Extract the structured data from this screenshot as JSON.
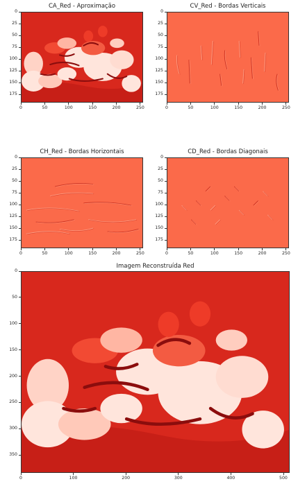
{
  "palette": {
    "approx_base": "#d8281d",
    "detail_base": "#fb6a4a",
    "highlight": "#ffe5dc",
    "shadow": "#8b0d0d",
    "edge_light": "#fc9c83",
    "edge_dark": "#cc3120"
  },
  "chart_data": [
    {
      "id": "ca",
      "type": "heatmap",
      "title": "CA_Red - Aproximação",
      "image_role": "approximation",
      "x_ticks": [
        0,
        50,
        100,
        150,
        200,
        250
      ],
      "y_ticks": [
        0,
        25,
        50,
        75,
        100,
        125,
        150,
        175
      ],
      "xlim": [
        0,
        256
      ],
      "ylim": [
        192,
        0
      ]
    },
    {
      "id": "cv",
      "type": "heatmap",
      "title": "CV_Red - Bordas Verticais",
      "image_role": "vertical-detail",
      "x_ticks": [
        0,
        50,
        100,
        150,
        200,
        250
      ],
      "y_ticks": [
        0,
        25,
        50,
        75,
        100,
        125,
        150,
        175
      ],
      "xlim": [
        0,
        256
      ],
      "ylim": [
        192,
        0
      ]
    },
    {
      "id": "ch",
      "type": "heatmap",
      "title": "CH_Red - Bordas Horizontais",
      "image_role": "horizontal-detail",
      "x_ticks": [
        0,
        50,
        100,
        150,
        200,
        250
      ],
      "y_ticks": [
        0,
        25,
        50,
        75,
        100,
        125,
        150,
        175
      ],
      "xlim": [
        0,
        256
      ],
      "ylim": [
        192,
        0
      ]
    },
    {
      "id": "cd",
      "type": "heatmap",
      "title": "CD_Red - Bordas Diagonais",
      "image_role": "diagonal-detail",
      "x_ticks": [
        0,
        50,
        100,
        150,
        200,
        250
      ],
      "y_ticks": [
        0,
        25,
        50,
        75,
        100,
        125,
        150,
        175
      ],
      "xlim": [
        0,
        256
      ],
      "ylim": [
        192,
        0
      ]
    },
    {
      "id": "rec",
      "type": "heatmap",
      "title": "Imagem Reconstruída Red",
      "image_role": "reconstruction",
      "x_ticks": [
        0,
        100,
        200,
        300,
        400,
        500
      ],
      "y_ticks": [
        0,
        50,
        100,
        150,
        200,
        250,
        300,
        350
      ],
      "xlim": [
        0,
        512
      ],
      "ylim": [
        384,
        0
      ]
    }
  ]
}
